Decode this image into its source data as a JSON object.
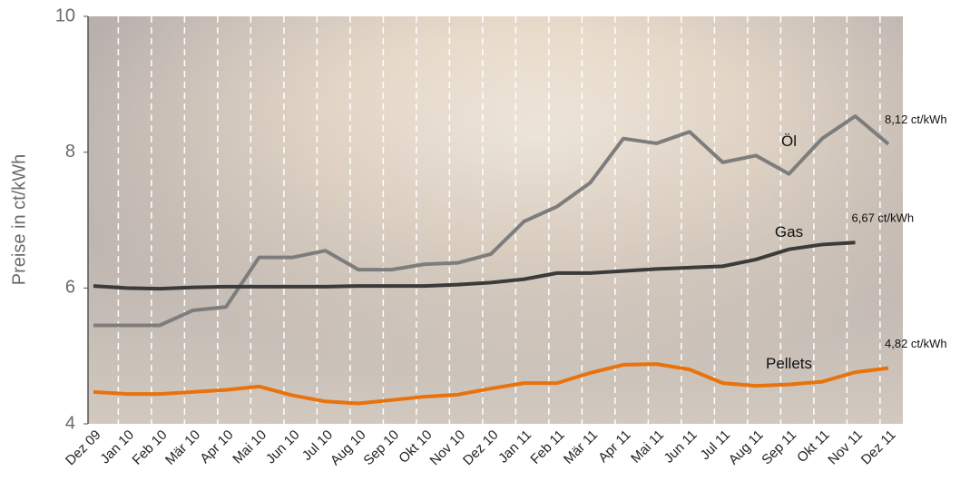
{
  "chart_data": {
    "type": "line",
    "y_label": "Preise in ct/kWh",
    "categories": [
      "Dez 09",
      "Jan 10",
      "Feb 10",
      "Mär 10",
      "Apr 10",
      "Mai 10",
      "Jun 10",
      "Jul 10",
      "Aug 10",
      "Sep 10",
      "Okt 10",
      "Nov 10",
      "Dez 10",
      "Jan 11",
      "Feb 11",
      "Mär 11",
      "Apr 11",
      "Mai 11",
      "Jun 11",
      "Jul 11",
      "Aug 11",
      "Sep 11",
      "Okt 11",
      "Nov 11",
      "Dez 11"
    ],
    "series": [
      {
        "name": "Öl",
        "color": "#7d7d7d",
        "annotation": "8,12 ct/kWh",
        "values": [
          5.45,
          5.45,
          5.45,
          5.67,
          5.72,
          6.45,
          6.45,
          6.55,
          6.27,
          6.27,
          6.35,
          6.37,
          6.5,
          6.98,
          7.2,
          7.55,
          8.2,
          8.13,
          8.3,
          7.85,
          7.95,
          7.68,
          8.2,
          8.53,
          8.12
        ]
      },
      {
        "name": "Gas",
        "color": "#3b3b3b",
        "annotation": "6,67 ct/kWh",
        "values": [
          6.03,
          6.0,
          5.99,
          6.01,
          6.02,
          6.02,
          6.02,
          6.02,
          6.03,
          6.03,
          6.03,
          6.05,
          6.08,
          6.13,
          6.22,
          6.22,
          6.25,
          6.28,
          6.3,
          6.32,
          6.42,
          6.57,
          6.64,
          6.67,
          null
        ]
      },
      {
        "name": "Pellets",
        "color": "#e8720c",
        "annotation": "4,82 ct/kWh",
        "values": [
          4.47,
          4.44,
          4.44,
          4.47,
          4.5,
          4.55,
          4.42,
          4.33,
          4.3,
          4.35,
          4.4,
          4.43,
          4.52,
          4.6,
          4.6,
          4.75,
          4.87,
          4.88,
          4.8,
          4.6,
          4.56,
          4.58,
          4.62,
          4.76,
          4.82
        ]
      }
    ],
    "ylim": [
      4,
      10
    ],
    "yticks": [
      4,
      6,
      8,
      10
    ]
  }
}
